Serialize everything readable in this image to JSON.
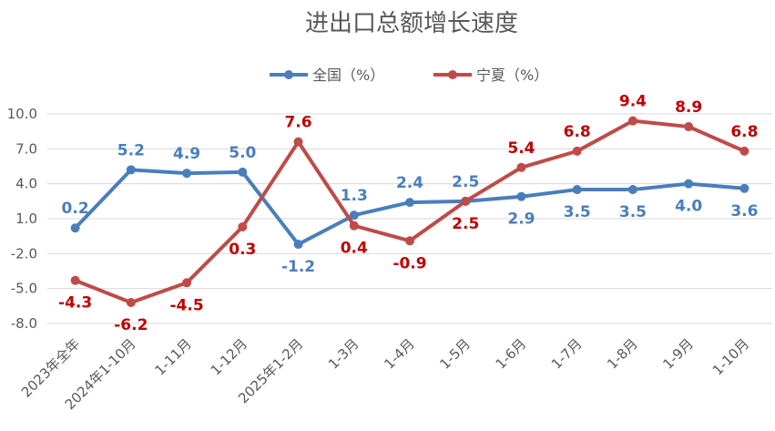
{
  "chart_data": {
    "type": "line",
    "title": "进出口总额增长速度",
    "categories": [
      "2023年全年",
      "2024年1-10月",
      "1-11月",
      "1-12月",
      "2025年1-2月",
      "1-3月",
      "1-4月",
      "1-5月",
      "1-6月",
      "1-7月",
      "1-8月",
      "1-9月",
      "1-10月"
    ],
    "series": [
      {
        "name": "全国（%）",
        "color": "#4a7ebb",
        "values": [
          0.2,
          5.2,
          4.9,
          5.0,
          -1.2,
          1.3,
          2.4,
          2.5,
          2.9,
          3.5,
          3.5,
          4.0,
          3.6
        ],
        "labels": [
          "0.2",
          "5.2",
          "4.9",
          "5.0",
          "-1.2",
          "1.3",
          "2.4",
          "2.5",
          "2.9",
          "3.5",
          "3.5",
          "4.0",
          "3.6"
        ],
        "label_side": [
          "above",
          "above",
          "above",
          "above",
          "below",
          "above",
          "above",
          "above",
          "below",
          "below",
          "below",
          "below",
          "below"
        ]
      },
      {
        "name": "宁夏（%）",
        "color": "#be4b48",
        "label_color": "#c00000",
        "values": [
          -4.3,
          -6.2,
          -4.5,
          0.3,
          7.6,
          0.4,
          -0.9,
          2.5,
          5.4,
          6.8,
          9.4,
          8.9,
          6.8
        ],
        "labels": [
          "-4.3",
          "-6.2",
          "-4.5",
          "0.3",
          "7.6",
          "0.4",
          "-0.9",
          "2.5",
          "5.4",
          "6.8",
          "9.4",
          "8.9",
          "6.8"
        ],
        "label_side": [
          "below",
          "below",
          "below",
          "below",
          "above",
          "below",
          "below",
          "below",
          "above",
          "above",
          "above",
          "above",
          "above"
        ]
      }
    ],
    "yticks": [
      "10.0",
      "7.0",
      "4.0",
      "1.0",
      "-2.0",
      "-5.0",
      "-8.0"
    ],
    "ylim": [
      -8,
      10
    ],
    "grid": true,
    "legend_position": "top-center"
  }
}
